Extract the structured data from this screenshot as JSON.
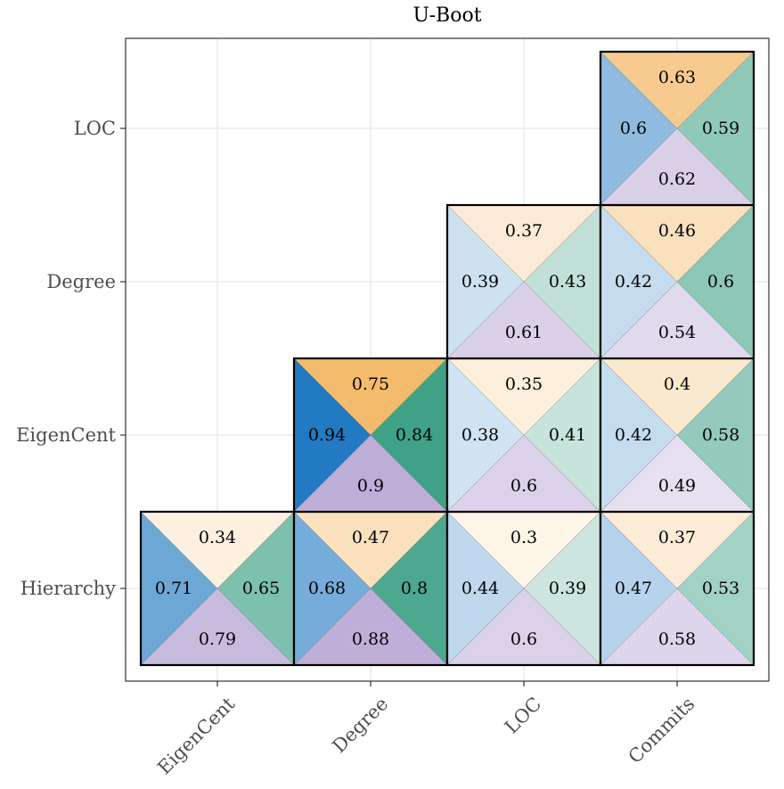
{
  "chart_data": {
    "type": "heatmap",
    "title": "U-Boot",
    "x_categories": [
      "EigenCent",
      "Degree",
      "LOC",
      "Commits"
    ],
    "y_categories": [
      "Hierarchy",
      "EigenCent",
      "Degree",
      "LOC"
    ],
    "grid": true,
    "legend": "none",
    "triangle_colors": {
      "top": "#f0a030",
      "left": "#1f78c1",
      "right": "#1a9070",
      "bottom": "#b8a6d4"
    },
    "cells": [
      {
        "x": "EigenCent",
        "y": "Hierarchy",
        "top": 0.34,
        "left": 0.71,
        "right": 0.65,
        "bottom": 0.79
      },
      {
        "x": "Degree",
        "y": "Hierarchy",
        "top": 0.47,
        "left": 0.68,
        "right": 0.8,
        "bottom": 0.88
      },
      {
        "x": "LOC",
        "y": "Hierarchy",
        "top": 0.3,
        "left": 0.44,
        "right": 0.39,
        "bottom": 0.6
      },
      {
        "x": "Commits",
        "y": "Hierarchy",
        "top": 0.37,
        "left": 0.47,
        "right": 0.53,
        "bottom": 0.58
      },
      {
        "x": "Degree",
        "y": "EigenCent",
        "top": 0.75,
        "left": 0.94,
        "right": 0.84,
        "bottom": 0.9
      },
      {
        "x": "LOC",
        "y": "EigenCent",
        "top": 0.35,
        "left": 0.38,
        "right": 0.41,
        "bottom": 0.6
      },
      {
        "x": "Commits",
        "y": "EigenCent",
        "top": 0.4,
        "left": 0.42,
        "right": 0.58,
        "bottom": 0.49
      },
      {
        "x": "LOC",
        "y": "Degree",
        "top": 0.37,
        "left": 0.39,
        "right": 0.43,
        "bottom": 0.61
      },
      {
        "x": "Commits",
        "y": "Degree",
        "top": 0.46,
        "left": 0.42,
        "right": 0.6,
        "bottom": 0.54
      },
      {
        "x": "Commits",
        "y": "LOC",
        "top": 0.63,
        "left": 0.6,
        "right": 0.59,
        "bottom": 0.62
      }
    ]
  }
}
